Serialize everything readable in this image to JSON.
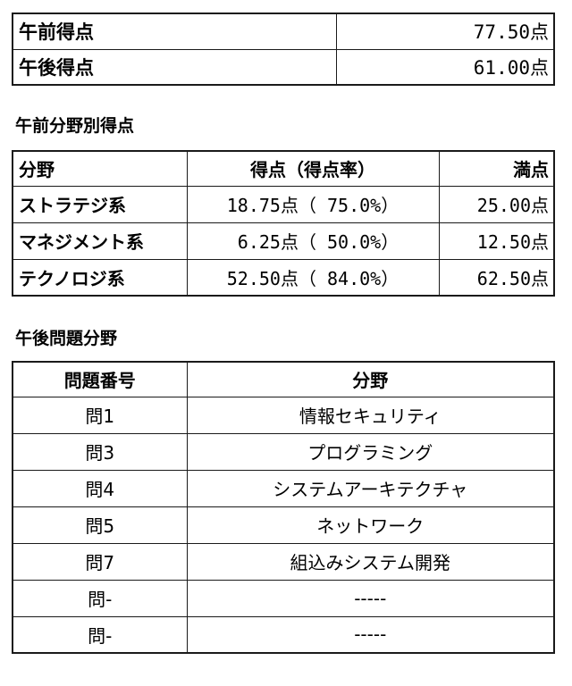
{
  "summary_table": {
    "rows": [
      {
        "label": "午前得点",
        "value": "77.50点"
      },
      {
        "label": "午後得点",
        "value": "61.00点"
      }
    ]
  },
  "morning_section": {
    "title": "午前分野別得点",
    "headers": {
      "category": "分野",
      "score": "得点（得点率）",
      "max": "満点"
    },
    "rows": [
      {
        "category": "ストラテジ系",
        "score": "18.75点（ 75.0%）",
        "max": "25.00点"
      },
      {
        "category": "マネジメント系",
        "score": " 6.25点（ 50.0%）",
        "max": "12.50点"
      },
      {
        "category": "テクノロジ系",
        "score": "52.50点（ 84.0%）",
        "max": "62.50点"
      }
    ]
  },
  "afternoon_section": {
    "title": "午後問題分野",
    "headers": {
      "number": "問題番号",
      "field": "分野"
    },
    "rows": [
      {
        "number": "問1",
        "field": "情報セキュリティ"
      },
      {
        "number": "問3",
        "field": "プログラミング"
      },
      {
        "number": "問4",
        "field": "システムアーキテクチャ"
      },
      {
        "number": "問5",
        "field": "ネットワーク"
      },
      {
        "number": "問7",
        "field": "組込みシステム開発"
      },
      {
        "number": "問-",
        "field": "-----"
      },
      {
        "number": "問-",
        "field": "-----"
      }
    ]
  }
}
